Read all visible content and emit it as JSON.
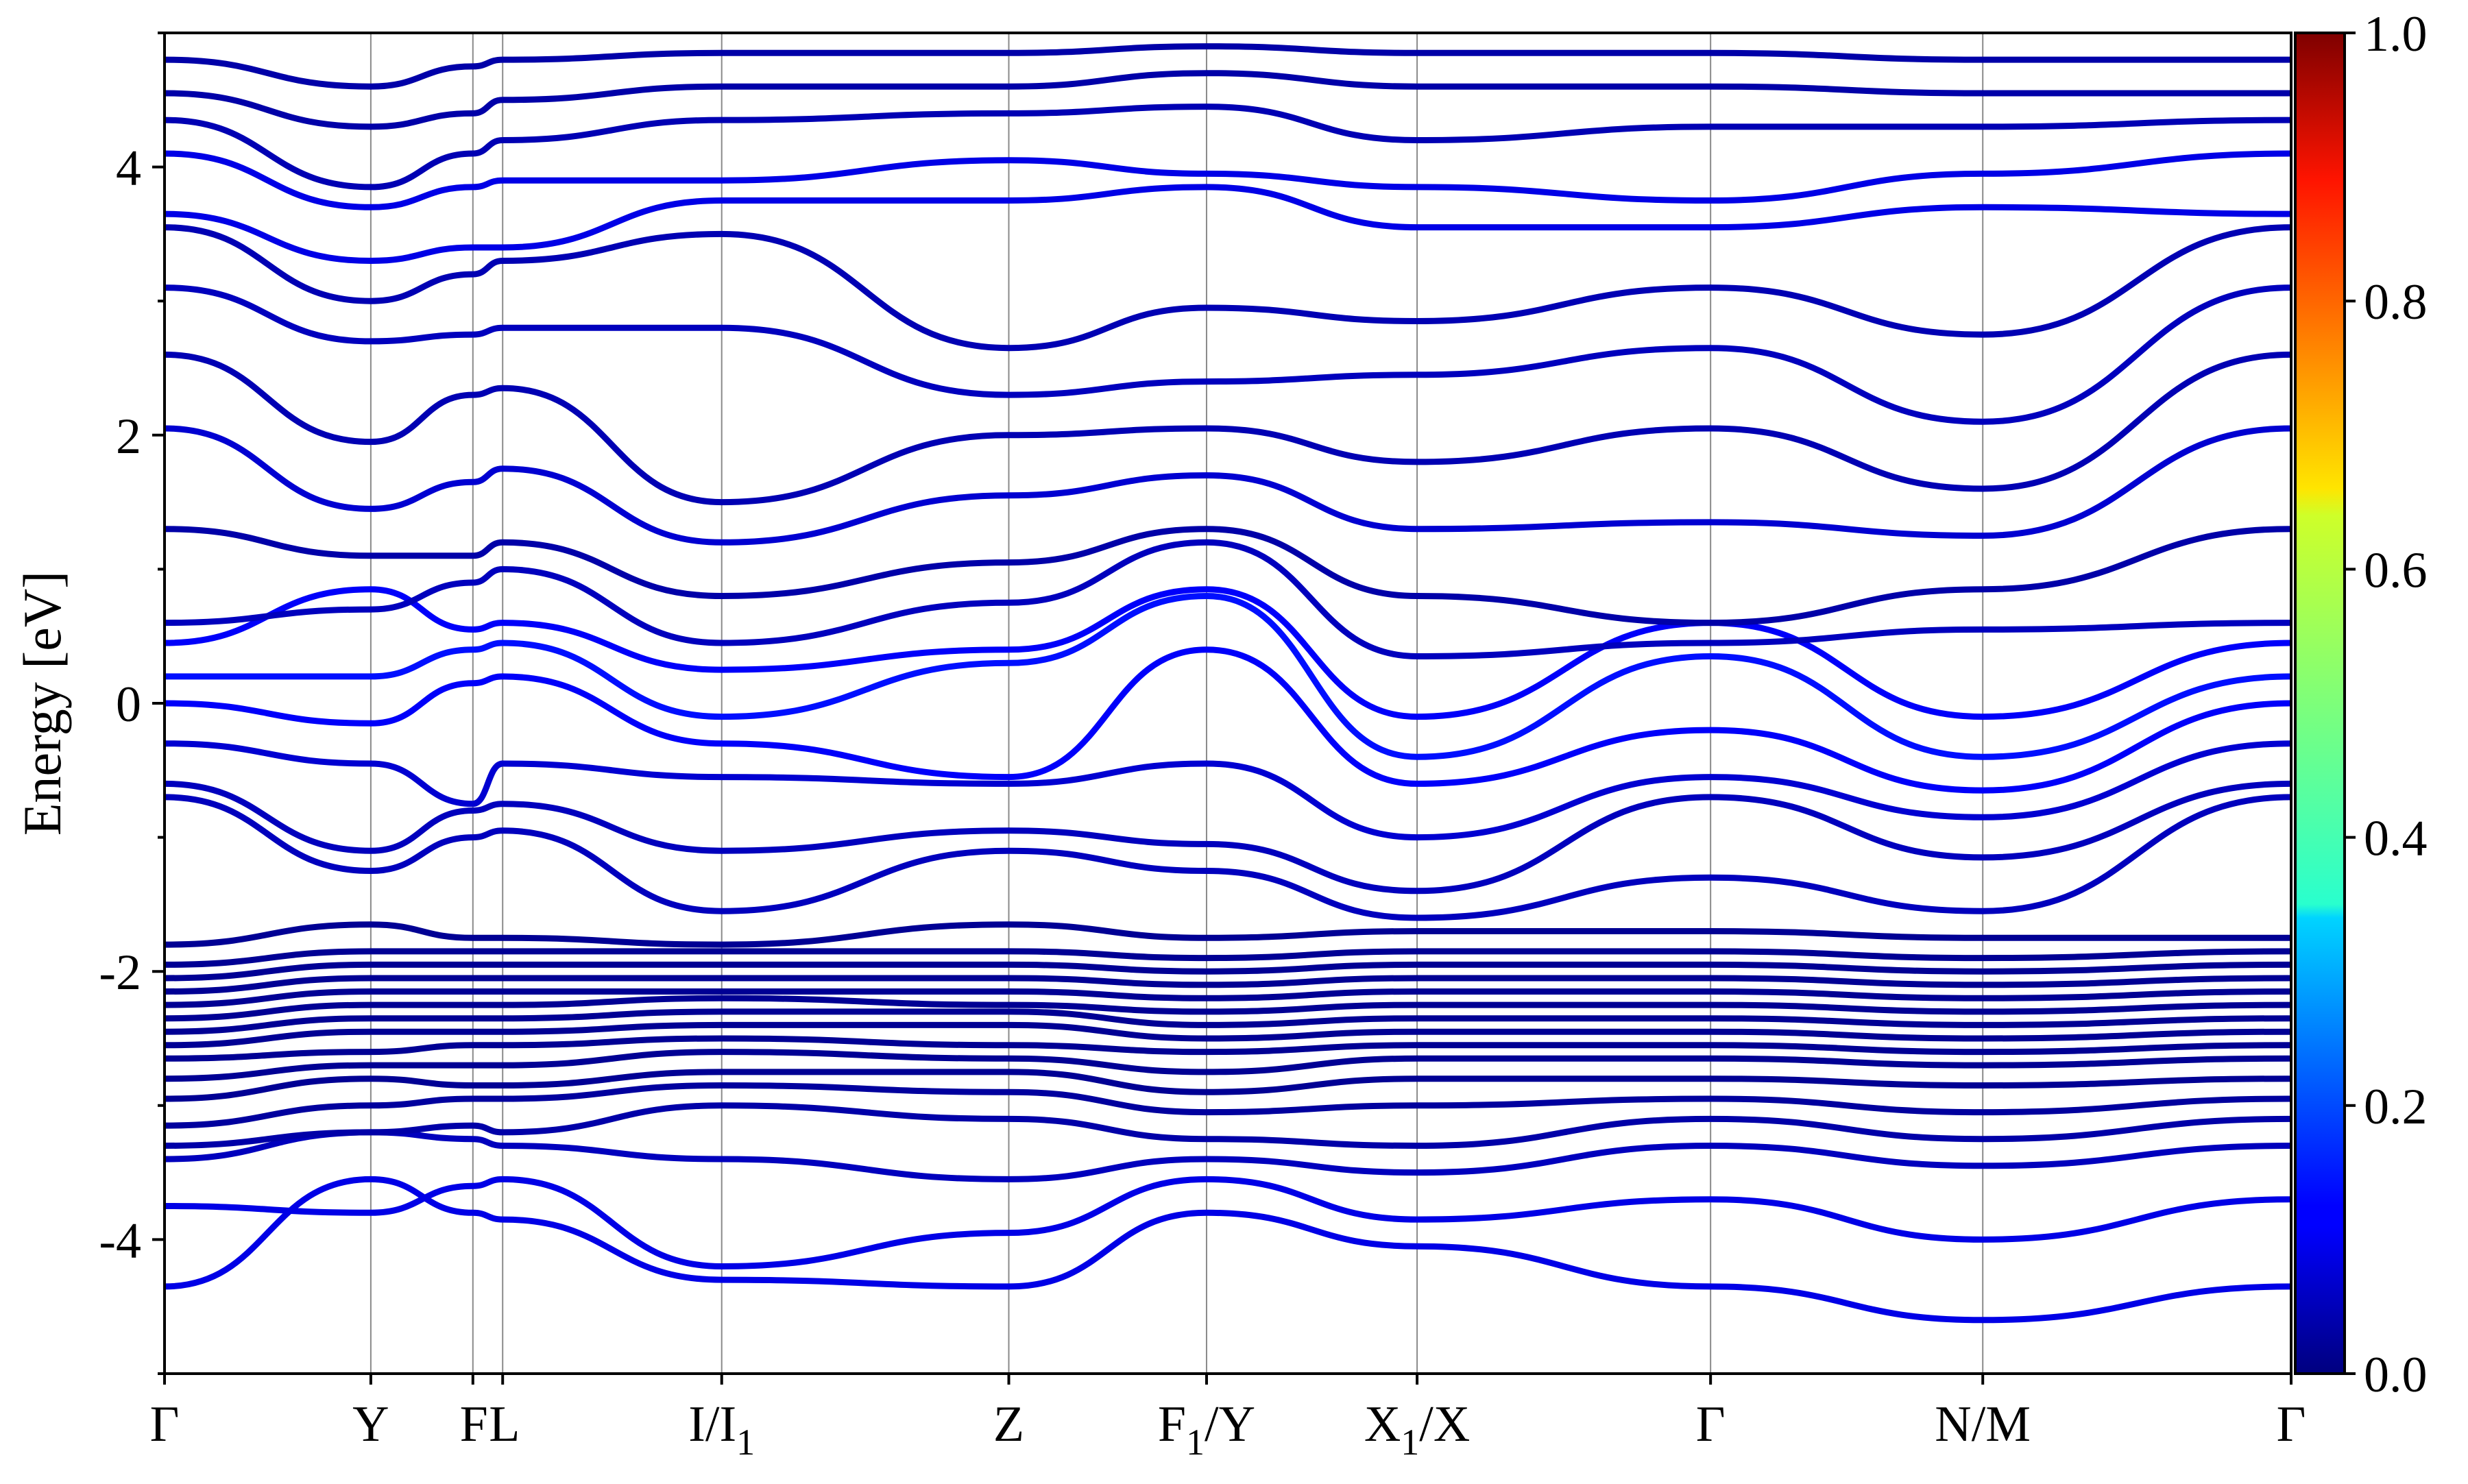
{
  "chart_data": {
    "type": "line",
    "title": "",
    "xlabel": "",
    "ylabel": "Energy [eV]",
    "ylim": [
      -5,
      5
    ],
    "grid": "vertical lines at high-symmetry points",
    "legend": "none",
    "x_range": [
      0,
      1
    ],
    "y_ticks": [
      {
        "value": 4,
        "label": "4"
      },
      {
        "value": 2,
        "label": "2"
      },
      {
        "value": 0,
        "label": "0"
      },
      {
        "value": -2,
        "label": "-2"
      },
      {
        "value": -4,
        "label": "-4"
      }
    ],
    "kpoints": [
      {
        "x": 0.0,
        "label": "Γ",
        "sub": "",
        "suffix": ""
      },
      {
        "x": 0.097,
        "label": "Y",
        "sub": "",
        "suffix": ""
      },
      {
        "x": 0.145,
        "label": "F",
        "sub": "",
        "suffix": ""
      },
      {
        "x": 0.159,
        "label": "L",
        "sub": "",
        "suffix": ""
      },
      {
        "x": 0.262,
        "label": "I/I",
        "sub": "1",
        "suffix": ""
      },
      {
        "x": 0.397,
        "label": "Z",
        "sub": "",
        "suffix": ""
      },
      {
        "x": 0.49,
        "label": "F",
        "sub": "1",
        "suffix": "/Y"
      },
      {
        "x": 0.589,
        "label": "X",
        "sub": "1",
        "suffix": "/X"
      },
      {
        "x": 0.727,
        "label": "Γ",
        "sub": "",
        "suffix": ""
      },
      {
        "x": 0.855,
        "label": "N/M",
        "sub": "",
        "suffix": ""
      },
      {
        "x": 1.0,
        "label": "Γ",
        "sub": "",
        "suffix": ""
      }
    ],
    "colorbar": {
      "colormap": "jet",
      "range": [
        0.0,
        1.0
      ],
      "ticks": [
        {
          "value": 1.0,
          "label": "1.0"
        },
        {
          "value": 0.8,
          "label": "0.8"
        },
        {
          "value": 0.6,
          "label": "0.6"
        },
        {
          "value": 0.4,
          "label": "0.4"
        },
        {
          "value": 0.2,
          "label": "0.2"
        },
        {
          "value": 0.0,
          "label": "0.0"
        }
      ]
    },
    "bands": [
      {
        "E": [
          -4.35,
          -3.55,
          -3.8,
          -3.85,
          -4.3,
          -4.35,
          -3.8,
          -4.05,
          -4.35,
          -4.6,
          -4.35
        ],
        "w": 0.1
      },
      {
        "E": [
          -3.75,
          -3.8,
          -3.6,
          -3.55,
          -4.2,
          -3.95,
          -3.55,
          -3.85,
          -3.7,
          -4.0,
          -3.7
        ],
        "w": 0.1
      },
      {
        "E": [
          -3.4,
          -3.2,
          -3.25,
          -3.3,
          -3.4,
          -3.55,
          -3.4,
          -3.5,
          -3.3,
          -3.45,
          -3.3
        ],
        "w": 0.06
      },
      {
        "E": [
          -3.3,
          -3.2,
          -3.15,
          -3.2,
          -3.0,
          -3.1,
          -3.25,
          -3.3,
          -3.1,
          -3.25,
          -3.1
        ],
        "w": 0.04
      },
      {
        "E": [
          -3.15,
          -3.0,
          -2.95,
          -2.95,
          -2.85,
          -2.9,
          -3.05,
          -3.0,
          -2.95,
          -3.05,
          -2.95
        ],
        "w": 0.03
      },
      {
        "E": [
          -2.95,
          -2.8,
          -2.85,
          -2.85,
          -2.75,
          -2.75,
          -2.9,
          -2.8,
          -2.8,
          -2.85,
          -2.8
        ],
        "w": 0.02
      },
      {
        "E": [
          -2.8,
          -2.7,
          -2.7,
          -2.7,
          -2.6,
          -2.65,
          -2.75,
          -2.65,
          -2.65,
          -2.7,
          -2.65
        ],
        "w": 0.02
      },
      {
        "E": [
          -2.65,
          -2.6,
          -2.55,
          -2.55,
          -2.5,
          -2.55,
          -2.6,
          -2.55,
          -2.55,
          -2.6,
          -2.55
        ],
        "w": 0.02
      },
      {
        "E": [
          -2.55,
          -2.45,
          -2.45,
          -2.45,
          -2.4,
          -2.4,
          -2.5,
          -2.45,
          -2.45,
          -2.5,
          -2.45
        ],
        "w": 0.02
      },
      {
        "E": [
          -2.45,
          -2.35,
          -2.35,
          -2.35,
          -2.3,
          -2.3,
          -2.4,
          -2.35,
          -2.35,
          -2.4,
          -2.35
        ],
        "w": 0.02
      },
      {
        "E": [
          -2.35,
          -2.25,
          -2.25,
          -2.25,
          -2.2,
          -2.25,
          -2.3,
          -2.25,
          -2.25,
          -2.3,
          -2.25
        ],
        "w": 0.02
      },
      {
        "E": [
          -2.25,
          -2.15,
          -2.15,
          -2.15,
          -2.15,
          -2.15,
          -2.2,
          -2.15,
          -2.15,
          -2.2,
          -2.15
        ],
        "w": 0.02
      },
      {
        "E": [
          -2.15,
          -2.05,
          -2.05,
          -2.05,
          -2.05,
          -2.05,
          -2.1,
          -2.05,
          -2.05,
          -2.1,
          -2.05
        ],
        "w": 0.02
      },
      {
        "E": [
          -2.05,
          -1.95,
          -1.95,
          -1.95,
          -1.95,
          -1.95,
          -2.0,
          -1.95,
          -1.95,
          -2.0,
          -1.95
        ],
        "w": 0.02
      },
      {
        "E": [
          -1.95,
          -1.85,
          -1.85,
          -1.85,
          -1.85,
          -1.85,
          -1.9,
          -1.85,
          -1.85,
          -1.9,
          -1.85
        ],
        "w": 0.02
      },
      {
        "E": [
          -1.8,
          -1.65,
          -1.75,
          -1.75,
          -1.8,
          -1.65,
          -1.75,
          -1.7,
          -1.7,
          -1.75,
          -1.75
        ],
        "w": 0.02
      },
      {
        "E": [
          -0.7,
          -1.25,
          -1.0,
          -0.95,
          -1.55,
          -1.1,
          -1.25,
          -1.6,
          -1.3,
          -1.55,
          -0.7
        ],
        "w": 0.06
      },
      {
        "E": [
          -0.6,
          -1.1,
          -0.8,
          -0.75,
          -1.1,
          -0.95,
          -1.05,
          -1.4,
          -0.7,
          -1.15,
          -0.6
        ],
        "w": 0.06
      },
      {
        "E": [
          -0.3,
          -0.45,
          -0.75,
          -0.45,
          -0.55,
          -0.6,
          -0.45,
          -1.0,
          -0.55,
          -0.85,
          -0.3
        ],
        "w": 0.08
      },
      {
        "E": [
          0.0,
          -0.15,
          0.15,
          0.2,
          -0.3,
          -0.55,
          0.4,
          -0.6,
          -0.2,
          -0.65,
          0.0
        ],
        "w": 0.12
      },
      {
        "E": [
          0.2,
          0.2,
          0.4,
          0.45,
          -0.1,
          0.3,
          0.8,
          -0.4,
          0.35,
          -0.4,
          0.2
        ],
        "w": 0.14
      },
      {
        "E": [
          0.45,
          0.85,
          0.55,
          0.6,
          0.25,
          0.4,
          0.85,
          -0.1,
          0.6,
          -0.1,
          0.45
        ],
        "w": 0.12
      },
      {
        "E": [
          0.6,
          0.7,
          0.9,
          1.0,
          0.45,
          0.75,
          1.2,
          0.35,
          0.45,
          0.55,
          0.6
        ],
        "w": 0.06
      },
      {
        "E": [
          1.3,
          1.1,
          1.1,
          1.2,
          0.8,
          1.05,
          1.3,
          0.8,
          0.6,
          0.85,
          1.3
        ],
        "w": 0.04
      },
      {
        "E": [
          2.05,
          1.45,
          1.65,
          1.75,
          1.2,
          1.55,
          1.7,
          1.3,
          1.35,
          1.25,
          2.05
        ],
        "w": 0.08
      },
      {
        "E": [
          2.6,
          1.95,
          2.3,
          2.35,
          1.5,
          2.0,
          2.05,
          1.8,
          2.05,
          1.6,
          2.6
        ],
        "w": 0.05
      },
      {
        "E": [
          3.1,
          2.7,
          2.75,
          2.8,
          2.8,
          2.3,
          2.4,
          2.45,
          2.65,
          2.1,
          3.1
        ],
        "w": 0.06
      },
      {
        "E": [
          3.55,
          3.0,
          3.2,
          3.3,
          3.5,
          2.65,
          2.95,
          2.85,
          3.1,
          2.75,
          3.55
        ],
        "w": 0.05
      },
      {
        "E": [
          3.65,
          3.3,
          3.4,
          3.4,
          3.75,
          3.75,
          3.85,
          3.55,
          3.55,
          3.7,
          3.65
        ],
        "w": 0.1
      },
      {
        "E": [
          4.1,
          3.7,
          3.85,
          3.9,
          3.9,
          4.05,
          3.95,
          3.85,
          3.75,
          3.95,
          4.1
        ],
        "w": 0.1
      },
      {
        "E": [
          4.35,
          3.85,
          4.1,
          4.2,
          4.35,
          4.4,
          4.45,
          4.2,
          4.3,
          4.3,
          4.35
        ],
        "w": 0.05
      },
      {
        "E": [
          4.55,
          4.3,
          4.4,
          4.5,
          4.6,
          4.6,
          4.7,
          4.6,
          4.6,
          4.55,
          4.55
        ],
        "w": 0.04
      },
      {
        "E": [
          4.8,
          4.6,
          4.75,
          4.8,
          4.85,
          4.85,
          4.9,
          4.85,
          4.85,
          4.8,
          4.8
        ],
        "w": 0.04
      }
    ]
  }
}
